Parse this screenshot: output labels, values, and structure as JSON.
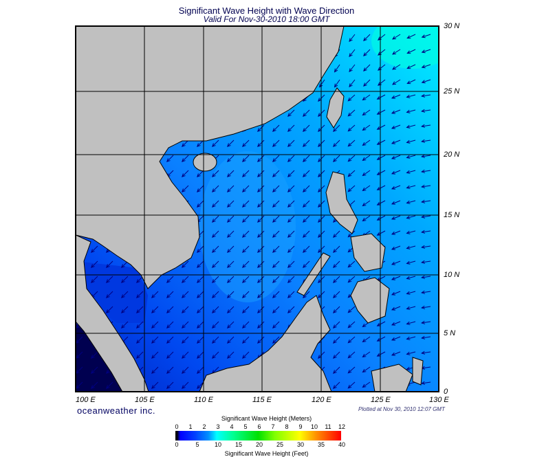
{
  "header": {
    "title": "Significant Wave Height with Wave Direction",
    "subtitle": "Valid For Nov-30-2010 18:00 GMT"
  },
  "axes": {
    "lon_labels": [
      "100 E",
      "105 E",
      "110 E",
      "115 E",
      "120 E",
      "125 E",
      "130 E"
    ],
    "lat_labels": [
      "30 N",
      "25 N",
      "20 N",
      "15 N",
      "10 N",
      "5 N",
      "0"
    ]
  },
  "footer": {
    "brand": "oceanweather inc.",
    "plotted": "Plotted at Nov 30, 2010 12:07 GMT"
  },
  "legend": {
    "title_meters": "Significant Wave Height (Meters)",
    "title_feet": "Significant Wave Height (Feet)",
    "meters_ticks": [
      "0",
      "1",
      "2",
      "3",
      "4",
      "5",
      "6",
      "7",
      "8",
      "9",
      "10",
      "11",
      "12"
    ],
    "feet_ticks": [
      "0",
      "5",
      "10",
      "15",
      "20",
      "25",
      "30",
      "35",
      "40"
    ]
  },
  "colors": {
    "land": "#c0c0c0",
    "sea_low": "#0030f0",
    "sea_mid": "#0080ff",
    "sea_high": "#00e0ff",
    "arrow": "#000080"
  }
}
